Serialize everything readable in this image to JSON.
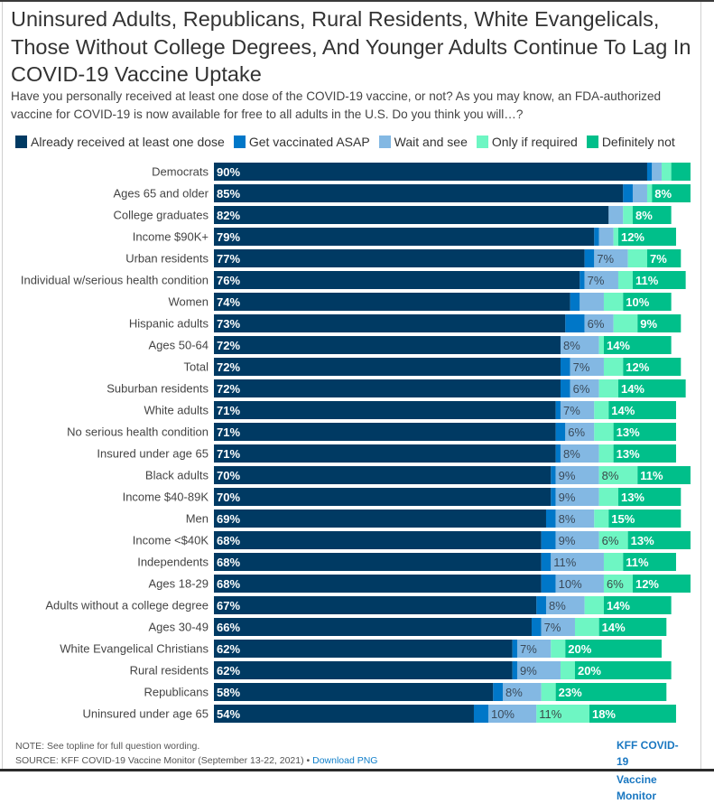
{
  "header": {
    "title": "Uninsured Adults, Republicans, Rural Residents, White Evangelicals, Those Without College Degrees, And Younger Adults Continue To Lag In COVID-19 Vaccine Uptake",
    "subtitle": "Have you personally received at least one dose of the COVID-19 vaccine, or not? As you may know, an FDA-authorized vaccine for COVID-19 is now available for free to all adults in the U.S. Do you think you will…?"
  },
  "footer": {
    "note": "NOTE: See topline for full question wording.",
    "source": "SOURCE: KFF COVID-19 Vaccine Monitor (September 13-22, 2021) •",
    "download_label": "Download PNG",
    "brand_line1": "KFF COVID-19",
    "brand_line2": "Vaccine Monitor"
  },
  "chart_data": {
    "type": "bar",
    "orientation": "horizontal",
    "stacked": true,
    "title": "Uninsured Adults, Republicans, Rural Residents, White Evangelicals, Those Without College Degrees, And Younger Adults Continue To Lag In COVID-19 Vaccine Uptake",
    "xlabel": "",
    "ylabel": "",
    "xlim": [
      0,
      100
    ],
    "grid": false,
    "legend_position": "top-left",
    "label_threshold_pct": 6,
    "categories": [
      "Democrats",
      "Ages 65 and older",
      "College graduates",
      "Income $90K+",
      "Urban residents",
      "Individual w/serious health condition",
      "Women",
      "Hispanic adults",
      "Ages 50-64",
      "Total",
      "Suburban residents",
      "White adults",
      "No serious health condition",
      "Insured under age 65",
      "Black adults",
      "Income $40-89K",
      "Men",
      "Income <$40K",
      "Independents",
      "Ages 18-29",
      "Adults without a college degree",
      "Ages 30-49",
      "White Evangelical Christians",
      "Rural residents",
      "Republicans",
      "Uninsured under age 65"
    ],
    "series": [
      {
        "name": "Already received at least one dose",
        "color": "#003a63",
        "label_color": "#ffffff",
        "label_bold": true,
        "values": [
          90,
          85,
          82,
          79,
          77,
          76,
          74,
          73,
          72,
          72,
          72,
          71,
          71,
          71,
          70,
          70,
          69,
          68,
          68,
          68,
          67,
          66,
          62,
          62,
          58,
          54
        ]
      },
      {
        "name": "Get vaccinated ASAP",
        "color": "#0077c8",
        "label_color": "#ffffff",
        "label_bold": false,
        "values": [
          1,
          2,
          0,
          1,
          2,
          1,
          2,
          4,
          0,
          2,
          2,
          1,
          2,
          1,
          1,
          1,
          2,
          3,
          2,
          3,
          2,
          2,
          1,
          1,
          2,
          3
        ]
      },
      {
        "name": "Wait and see",
        "color": "#83b8e3",
        "label_color": "#3a4a5a",
        "label_bold": false,
        "values": [
          2,
          3,
          3,
          3,
          7,
          7,
          5,
          6,
          8,
          7,
          6,
          7,
          6,
          8,
          9,
          9,
          8,
          9,
          11,
          10,
          8,
          7,
          7,
          9,
          8,
          10
        ]
      },
      {
        "name": "Only if required",
        "color": "#6ef6c3",
        "label_color": "#3a4a4a",
        "label_bold": false,
        "values": [
          2,
          1,
          2,
          1,
          4,
          3,
          4,
          5,
          1,
          4,
          4,
          3,
          4,
          3,
          8,
          4,
          3,
          6,
          4,
          6,
          4,
          5,
          3,
          3,
          3,
          11
        ]
      },
      {
        "name": "Definitely not",
        "color": "#00bf8a",
        "label_color": "#ffffff",
        "label_bold": true,
        "values": [
          4,
          8,
          8,
          12,
          7,
          11,
          10,
          9,
          14,
          12,
          14,
          14,
          13,
          13,
          11,
          13,
          15,
          13,
          11,
          12,
          14,
          14,
          20,
          20,
          23,
          18
        ]
      }
    ],
    "visible_labels": [
      [
        "90%",
        "",
        "",
        "",
        ""
      ],
      [
        "85%",
        "",
        "",
        "",
        "8%"
      ],
      [
        "82%",
        "",
        "",
        "",
        "8%"
      ],
      [
        "79%",
        "",
        "",
        "",
        "12%"
      ],
      [
        "77%",
        "",
        "7%",
        "",
        "7%"
      ],
      [
        "76%",
        "",
        "7%",
        "",
        "11%"
      ],
      [
        "74%",
        "",
        "",
        "",
        "10%"
      ],
      [
        "73%",
        "",
        "6%",
        "",
        "9%"
      ],
      [
        "72%",
        "",
        "8%",
        "",
        "14%"
      ],
      [
        "72%",
        "",
        "7%",
        "",
        "12%"
      ],
      [
        "72%",
        "",
        "6%",
        "",
        "14%"
      ],
      [
        "71%",
        "",
        "7%",
        "",
        "14%"
      ],
      [
        "71%",
        "",
        "6%",
        "",
        "13%"
      ],
      [
        "71%",
        "",
        "8%",
        "",
        "13%"
      ],
      [
        "70%",
        "",
        "9%",
        "8%",
        "11%"
      ],
      [
        "70%",
        "",
        "9%",
        "",
        "13%"
      ],
      [
        "69%",
        "",
        "8%",
        "",
        "15%"
      ],
      [
        "68%",
        "",
        "9%",
        "6%",
        "13%"
      ],
      [
        "68%",
        "",
        "11%",
        "",
        "11%"
      ],
      [
        "68%",
        "",
        "10%",
        "6%",
        "12%"
      ],
      [
        "67%",
        "",
        "8%",
        "",
        "14%"
      ],
      [
        "66%",
        "",
        "7%",
        "",
        "14%"
      ],
      [
        "62%",
        "",
        "7%",
        "",
        "20%"
      ],
      [
        "62%",
        "",
        "9%",
        "",
        "20%"
      ],
      [
        "58%",
        "",
        "8%",
        "",
        "23%"
      ],
      [
        "54%",
        "",
        "10%",
        "11%",
        "18%"
      ]
    ]
  }
}
